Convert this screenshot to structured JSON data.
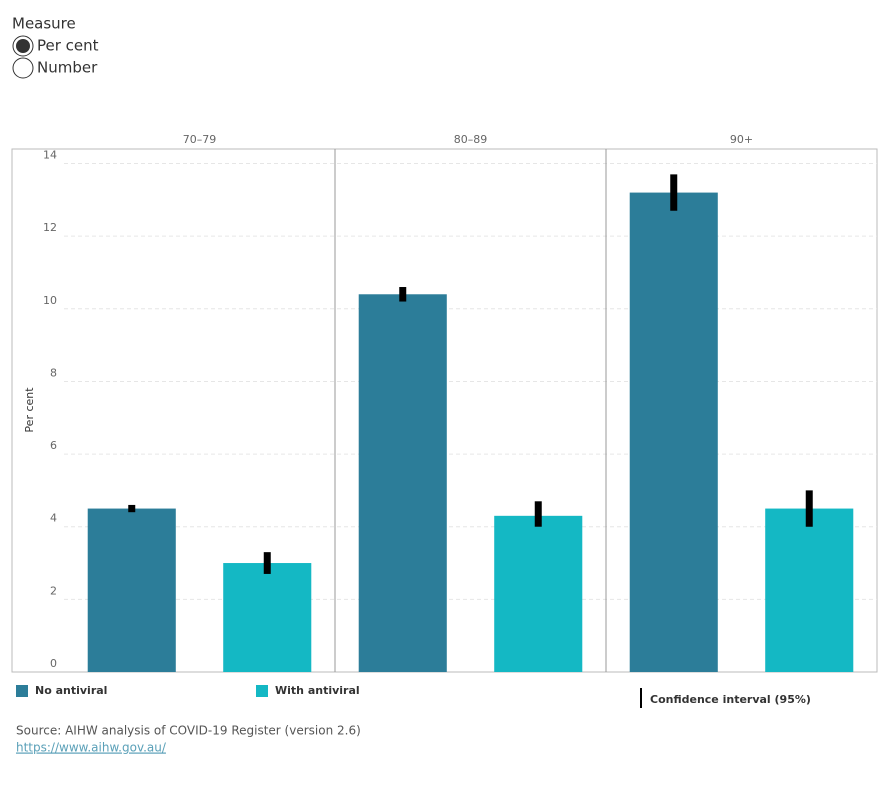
{
  "measure": {
    "title": "Measure",
    "options": [
      "Per cent",
      "Number"
    ],
    "selected": 0
  },
  "chart_data": {
    "type": "bar",
    "categories": [
      "70–79",
      "80–89",
      "90+"
    ],
    "y_label": "Per cent",
    "ylim": [
      0,
      14.4
    ],
    "yticks": [
      0,
      2,
      4,
      6,
      8,
      10,
      12,
      14
    ],
    "grid": true,
    "series": [
      {
        "name": "No antiviral",
        "color": "#2c7d99",
        "values": [
          4.5,
          10.4,
          13.2
        ],
        "ci_low": [
          4.4,
          10.2,
          12.7
        ],
        "ci_high": [
          4.6,
          10.6,
          13.7
        ]
      },
      {
        "name": "With antiviral",
        "color": "#14b8c4",
        "values": [
          3.0,
          4.3,
          4.5
        ],
        "ci_low": [
          2.7,
          4.0,
          4.0
        ],
        "ci_high": [
          3.3,
          4.7,
          5.0
        ]
      }
    ],
    "ci_label": "Confidence interval (95%)"
  },
  "source": {
    "text": "Source: AIHW analysis of COVID-19 Register (version 2.6)",
    "link": "https://www.aihw.gov.au/"
  }
}
